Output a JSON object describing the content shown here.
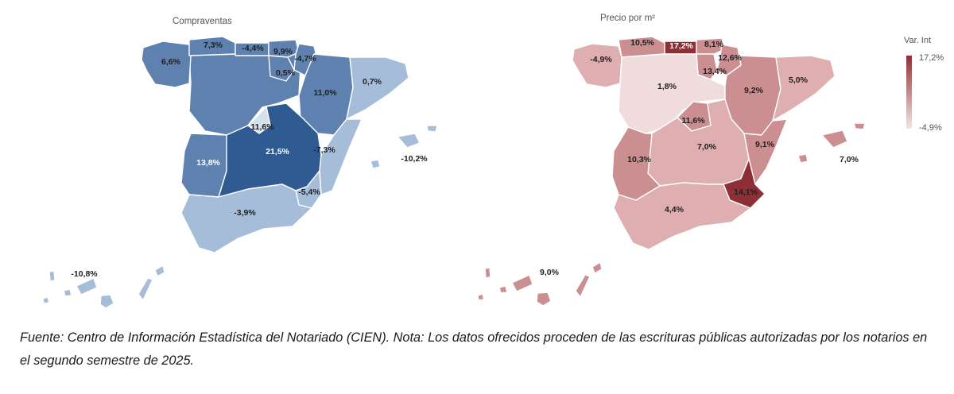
{
  "maps": [
    {
      "title": "Compraventas",
      "colors": {
        "base": "#5f81b0",
        "dark": "#2f5a92",
        "light": "#a6bdd9",
        "lightest": "#d6e1ee"
      },
      "regions": {
        "galicia": "6,6%",
        "asturias": "7,3%",
        "cantabria": "-4,4%",
        "pais_vasco": "9,9%",
        "navarra": "-4,7%",
        "la_rioja": "0,5%",
        "aragon": "11,0%",
        "cataluna": "0,7%",
        "madrid": "11,6%",
        "castilla_la_mancha": "21,5%",
        "extremadura": "13,8%",
        "valencia": "-7,3%",
        "murcia": "-5,4%",
        "andalucia": "-3,9%",
        "baleares": "-10,2%",
        "canarias": "-10,8%"
      }
    },
    {
      "title": "Precio por m²",
      "colors": {
        "base": "#cc8f91",
        "dark": "#8e2f35",
        "light": "#deaeb0",
        "lightest": "#f0dcdc"
      },
      "regions": {
        "galicia": "-4,9%",
        "asturias": "10,5%",
        "cantabria": "17,2%",
        "pais_vasco": "8,1%",
        "navarra": "12,6%",
        "la_rioja": "13,4%",
        "castilla_leon": "1,8%",
        "aragon": "9,2%",
        "cataluna": "5,0%",
        "madrid": "11,6%",
        "castilla_la_mancha": "7,0%",
        "extremadura": "10,3%",
        "valencia": "9,1%",
        "murcia": "14,1%",
        "andalucia": "4,4%",
        "baleares": "7,0%",
        "canarias": "9,0%"
      }
    }
  ],
  "legend": {
    "title": "Var. Int",
    "max": "17,2%",
    "min": "-4,9%",
    "color_max": "#8e2f35",
    "color_min": "#f3e6e6"
  },
  "footnote": "Fuente: Centro de Información Estadística del Notariado (CIEN). Nota: Los datos ofrecidos proceden de las escrituras públicas autorizadas por los notarios en el segundo semestre de 2025."
}
